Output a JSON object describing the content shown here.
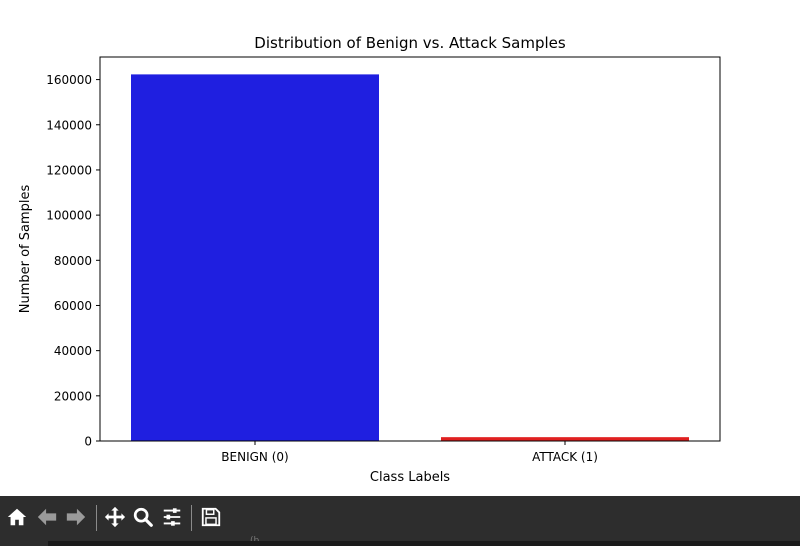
{
  "chart_data": {
    "type": "bar",
    "title": "Distribution of Benign vs. Attack Samples",
    "xlabel": "Class Labels",
    "ylabel": "Number of Samples",
    "categories": [
      "BENIGN (0)",
      "ATTACK (1)"
    ],
    "values": [
      162300,
      1700
    ],
    "colors": [
      "#1f1fe0",
      "#e02020"
    ],
    "ylim": [
      0,
      170000
    ],
    "yticks": [
      0,
      20000,
      40000,
      60000,
      80000,
      100000,
      120000,
      140000,
      160000
    ],
    "ytick_labels": [
      "0",
      "20000",
      "40000",
      "60000",
      "80000",
      "100000",
      "120000",
      "140000",
      "160000"
    ],
    "grid": false
  },
  "toolbar": {
    "items": [
      {
        "name": "home-icon",
        "tooltip": "Home"
      },
      {
        "name": "back-icon",
        "tooltip": "Back"
      },
      {
        "name": "forward-icon",
        "tooltip": "Forward"
      },
      {
        "name": "pan-icon",
        "tooltip": "Pan"
      },
      {
        "name": "zoom-icon",
        "tooltip": "Zoom"
      },
      {
        "name": "configure-subplots-icon",
        "tooltip": "Subplots"
      },
      {
        "name": "save-icon",
        "tooltip": "Save"
      }
    ]
  },
  "status": {
    "text": "(b"
  }
}
